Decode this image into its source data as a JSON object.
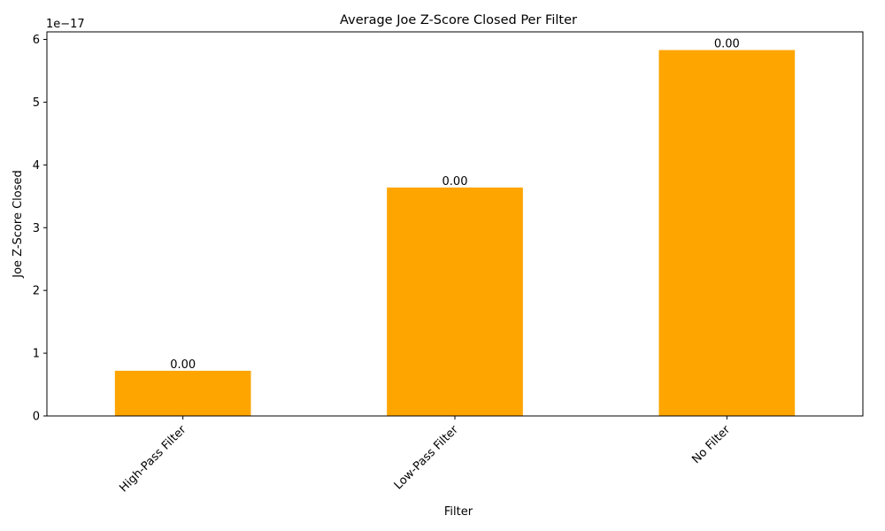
{
  "chart_data": {
    "type": "bar",
    "title": "Average Joe Z-Score Closed Per Filter",
    "xlabel": "Filter",
    "ylabel": "Joe Z-Score Closed",
    "offset_label": "1e−17",
    "categories": [
      "High-Pass Filter",
      "Low-Pass Filter",
      "No Filter"
    ],
    "values": [
      7.2e-18,
      3.64e-17,
      5.83e-17
    ],
    "data_labels": [
      "0.00",
      "0.00",
      "0.00"
    ],
    "y_tick_values": [
      0,
      1e-17,
      2e-17,
      3e-17,
      4e-17,
      5e-17,
      6e-17
    ],
    "y_tick_labels": [
      "0",
      "1",
      "2",
      "3",
      "4",
      "5",
      "6"
    ],
    "ylim": [
      0,
      6.12e-17
    ],
    "grid": false,
    "legend": "none",
    "bar_color": "#ffa500"
  }
}
